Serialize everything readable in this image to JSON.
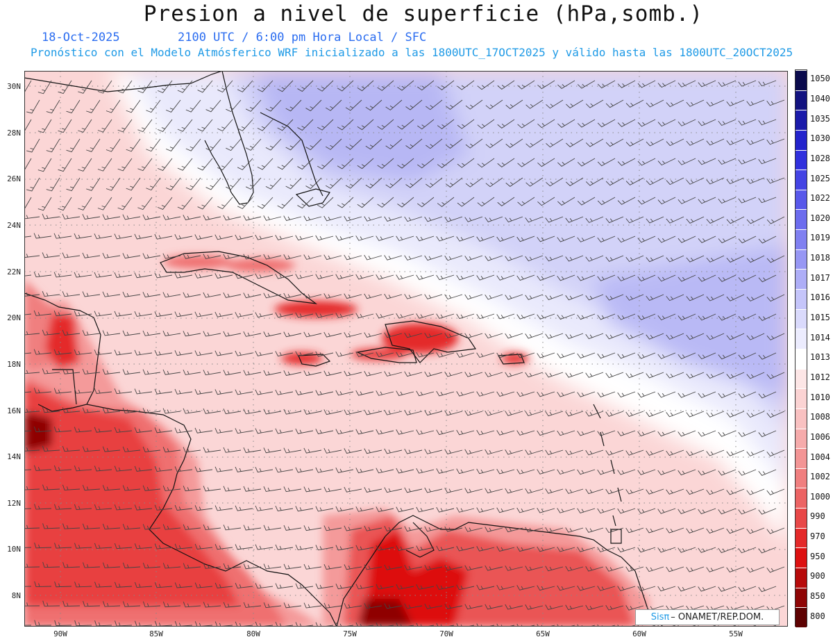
{
  "title": "Presion a nivel de superficie (hPa,somb.)",
  "date": "18-Oct-2025",
  "time": "2100 UTC / 6:00 pm Hora Local / SFC",
  "subtitle": "Pronóstico con el Modelo Atmósferico WRF inicializado a las 1800UTC_17OCT2025 y válido hasta las  1800UTC_20OCT2025",
  "lat_labels": [
    "30N",
    "28N",
    "26N",
    "24N",
    "22N",
    "20N",
    "18N",
    "16N",
    "14N",
    "12N",
    "10N",
    "8N"
  ],
  "lon_labels": [
    "90W",
    "85W",
    "80W",
    "75W",
    "70W",
    "65W",
    "60W",
    "55W"
  ],
  "colorbar": {
    "labels": [
      "1050",
      "1040",
      "1035",
      "1030",
      "1028",
      "1025",
      "1022",
      "1020",
      "1019",
      "1018",
      "1017",
      "1016",
      "1015",
      "1014",
      "1013",
      "1012",
      "1010",
      "1008",
      "1006",
      "1004",
      "1002",
      "1000",
      "990",
      "970",
      "950",
      "900",
      "850",
      "800"
    ],
    "colors": [
      "#0b0b4d",
      "#131380",
      "#1b1baa",
      "#2323cc",
      "#3030dd",
      "#4444e4",
      "#5858ea",
      "#6c6cee",
      "#8080f1",
      "#9797f4",
      "#aeaef7",
      "#c5c5fa",
      "#dadafc",
      "#ececfe",
      "#ffffff",
      "#fde6e6",
      "#fbd3d3",
      "#f9c1c1",
      "#f6abab",
      "#f39595",
      "#f07f7f",
      "#ec6464",
      "#e84848",
      "#e42a2a",
      "#dd1111",
      "#b70b0b",
      "#8f0606",
      "#5e0202"
    ]
  },
  "credit": {
    "sis": "Sisπ",
    "org": "– ONAMET/REP.DOM."
  }
}
